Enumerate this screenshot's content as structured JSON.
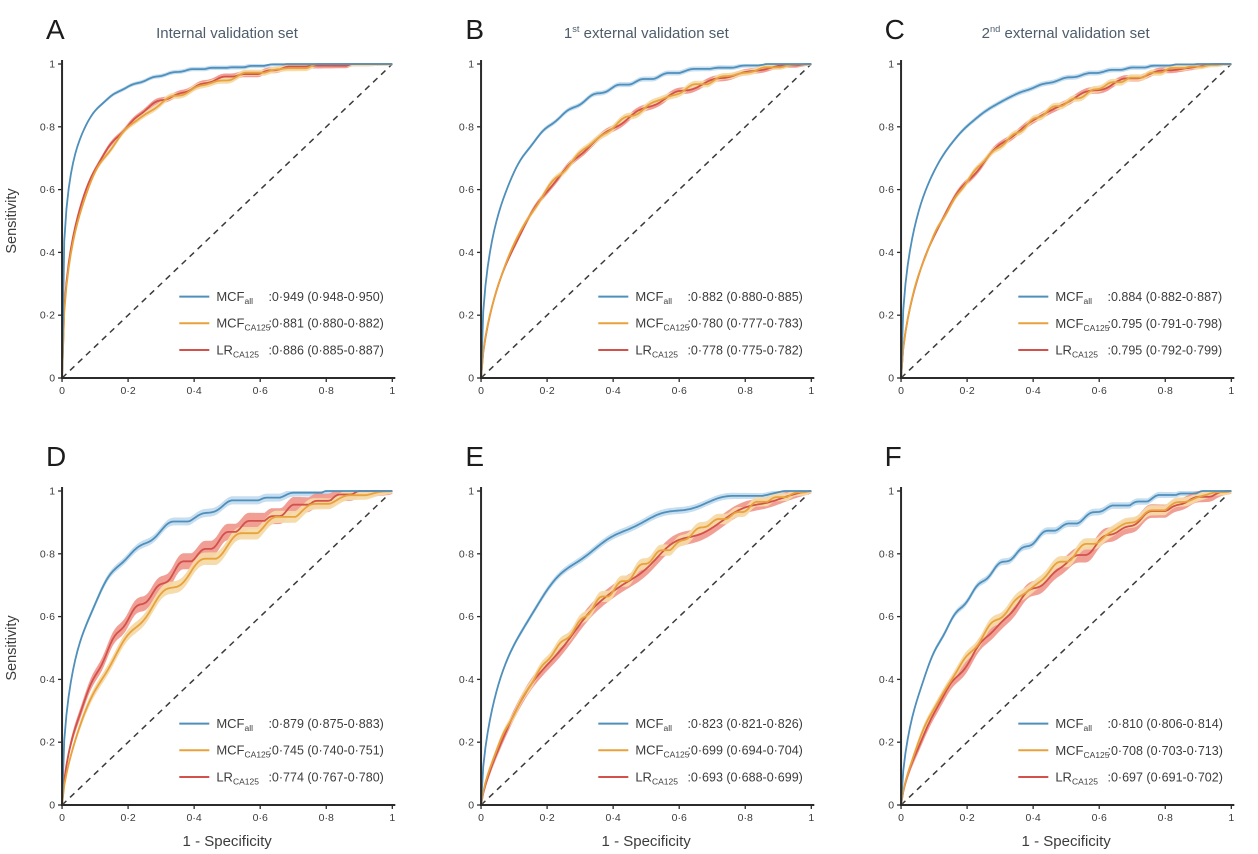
{
  "figure": {
    "xlabel": "1 - Specificity",
    "ylabel": "Sensitivity",
    "x_ticks": [
      "0",
      "0·2",
      "0·4",
      "0·6",
      "0·8",
      "1"
    ],
    "y_ticks": [
      "0",
      "0·2",
      "0·4",
      "0·6",
      "0·8",
      "1"
    ],
    "tick_values": [
      0,
      0.2,
      0.4,
      0.6,
      0.8,
      1
    ]
  },
  "colors": {
    "blue": {
      "line": "#4e8fbb",
      "band": "#c3dcee"
    },
    "orange": {
      "line": "#e8a23c",
      "band": "#f6d9a6"
    },
    "red": {
      "line": "#d2524b",
      "band": "#f0998f"
    },
    "diagonal": "#3a3a3a",
    "axis": "#2b2b2b",
    "text": "#3c3c3c",
    "title": "#4e5d6b"
  },
  "chart_data": [
    {
      "panel": "A",
      "type": "line",
      "title_prefix": "",
      "title_sup": "",
      "title_rest": "Internal validation set",
      "xlim": [
        0,
        1
      ],
      "ylim": [
        0,
        1
      ],
      "series": [
        {
          "name": "MCF",
          "sub": "all",
          "auc": 0.949,
          "auc_text": ":0·949 (0·948-0·950)",
          "color": "blue",
          "band": 0.007,
          "wiggle": 0.006
        },
        {
          "name": "MCF",
          "sub": "CA125",
          "auc": 0.881,
          "auc_text": ":0·881 (0·880-0·882)",
          "color": "orange",
          "band": 0.01,
          "wiggle": 0.01
        },
        {
          "name": "LR",
          "sub": "CA125",
          "auc": 0.886,
          "auc_text": ":0·886 (0·885-0·887)",
          "color": "red",
          "band": 0.01,
          "wiggle": 0.01
        }
      ]
    },
    {
      "panel": "B",
      "type": "line",
      "title_prefix": "1",
      "title_sup": "st",
      "title_rest": " external validation set",
      "xlim": [
        0,
        1
      ],
      "ylim": [
        0,
        1
      ],
      "series": [
        {
          "name": "MCF",
          "sub": "all",
          "auc": 0.882,
          "auc_text": ":0·882 (0·880-0·885)",
          "color": "blue",
          "band": 0.008,
          "wiggle": 0.008
        },
        {
          "name": "MCF",
          "sub": "CA125",
          "auc": 0.78,
          "auc_text": ":0·780 (0·777-0·783)",
          "color": "orange",
          "band": 0.011,
          "wiggle": 0.01
        },
        {
          "name": "LR",
          "sub": "CA125",
          "auc": 0.778,
          "auc_text": ":0·778 (0·775-0·782)",
          "color": "red",
          "band": 0.011,
          "wiggle": 0.01
        }
      ]
    },
    {
      "panel": "C",
      "type": "line",
      "title_prefix": "2",
      "title_sup": "nd",
      "title_rest": " external validation set",
      "xlim": [
        0,
        1
      ],
      "ylim": [
        0,
        1
      ],
      "series": [
        {
          "name": "MCF",
          "sub": "all",
          "auc": 0.884,
          "auc_text": ":0.884 (0·882-0·887)",
          "color": "blue",
          "band": 0.008,
          "wiggle": 0.008
        },
        {
          "name": "MCF",
          "sub": "CA125",
          "auc": 0.795,
          "auc_text": ":0.795 (0·791-0·798)",
          "color": "orange",
          "band": 0.011,
          "wiggle": 0.01
        },
        {
          "name": "LR",
          "sub": "CA125",
          "auc": 0.795,
          "auc_text": ":0.795 (0·792-0·799)",
          "color": "red",
          "band": 0.011,
          "wiggle": 0.01
        }
      ]
    },
    {
      "panel": "D",
      "type": "line",
      "title_prefix": "",
      "title_sup": "",
      "title_rest": "",
      "xlim": [
        0,
        1
      ],
      "ylim": [
        0,
        1
      ],
      "series": [
        {
          "name": "MCF",
          "sub": "all",
          "auc": 0.879,
          "auc_text": ":0·879 (0·875-0·883)",
          "color": "blue",
          "band": 0.013,
          "wiggle": 0.018
        },
        {
          "name": "MCF",
          "sub": "CA125",
          "auc": 0.745,
          "auc_text": ":0·745 (0·740-0·751)",
          "color": "orange",
          "band": 0.02,
          "wiggle": 0.02
        },
        {
          "name": "LR",
          "sub": "CA125",
          "auc": 0.774,
          "auc_text": ":0·774 (0·767-0·780)",
          "color": "red",
          "band": 0.026,
          "wiggle": 0.022
        }
      ]
    },
    {
      "panel": "E",
      "type": "line",
      "title_prefix": "",
      "title_sup": "",
      "title_rest": "",
      "xlim": [
        0,
        1
      ],
      "ylim": [
        0,
        1
      ],
      "series": [
        {
          "name": "MCF",
          "sub": "all",
          "auc": 0.823,
          "auc_text": ":0·823 (0·821-0·826)",
          "color": "blue",
          "band": 0.011,
          "wiggle": 0.014
        },
        {
          "name": "MCF",
          "sub": "CA125",
          "auc": 0.699,
          "auc_text": ":0·699 (0·694-0·704)",
          "color": "orange",
          "band": 0.018,
          "wiggle": 0.016
        },
        {
          "name": "LR",
          "sub": "CA125",
          "auc": 0.693,
          "auc_text": ":0·693 (0·688-0·699)",
          "color": "red",
          "band": 0.022,
          "wiggle": 0.017
        }
      ]
    },
    {
      "panel": "F",
      "type": "line",
      "title_prefix": "",
      "title_sup": "",
      "title_rest": "",
      "xlim": [
        0,
        1
      ],
      "ylim": [
        0,
        1
      ],
      "series": [
        {
          "name": "MCF",
          "sub": "all",
          "auc": 0.81,
          "auc_text": ":0·810 (0·806-0·814)",
          "color": "blue",
          "band": 0.011,
          "wiggle": 0.015
        },
        {
          "name": "MCF",
          "sub": "CA125",
          "auc": 0.708,
          "auc_text": ":0·708 (0·703-0·713)",
          "color": "orange",
          "band": 0.018,
          "wiggle": 0.016
        },
        {
          "name": "LR",
          "sub": "CA125",
          "auc": 0.697,
          "auc_text": ":0·697 (0·691-0·702)",
          "color": "red",
          "band": 0.024,
          "wiggle": 0.018
        }
      ]
    }
  ]
}
